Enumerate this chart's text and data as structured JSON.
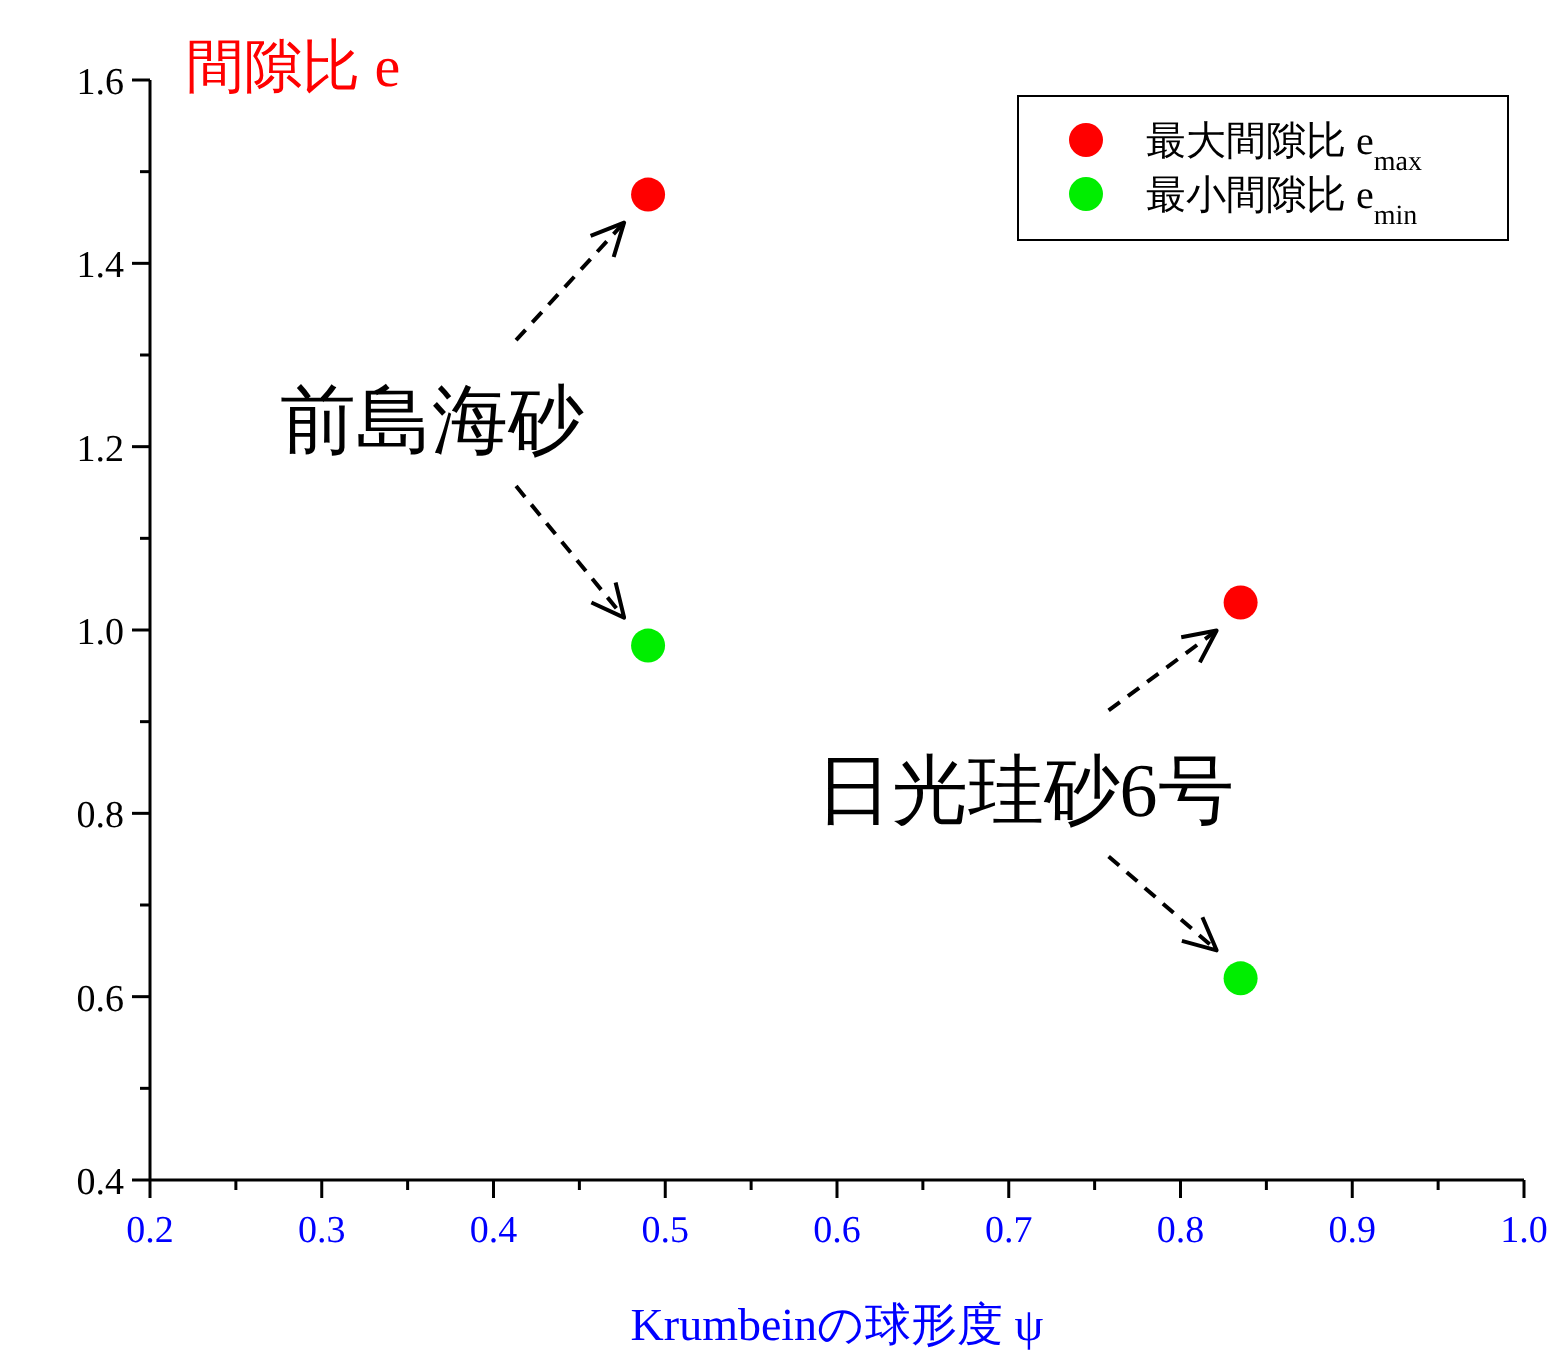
{
  "chart_data": {
    "type": "scatter",
    "ylabel": "間隙比 e",
    "xlabel": "Krumbeinの球形度 ψ",
    "x": [
      0.49,
      0.835
    ],
    "series": [
      {
        "name": "最大間隙比 e$_{max}$",
        "color": "#ff0000",
        "values": [
          1.475,
          1.03
        ]
      },
      {
        "name": "最小間隙比 e$_{min}$",
        "color": "#00ee00",
        "values": [
          0.983,
          0.62
        ]
      }
    ],
    "annotations": [
      "前島海砂",
      "日光珪砂6号"
    ],
    "xlim": [
      0.2,
      1.0
    ],
    "ylim": [
      0.4,
      1.6
    ],
    "xticks": [
      0.2,
      {
        "value": 0.25,
        "label": null
      },
      0.3,
      {
        "value": 0.35,
        "label": null
      },
      0.4,
      {
        "value": 0.45,
        "label": null
      },
      0.5,
      {
        "value": 0.55,
        "label": null
      },
      0.6,
      {
        "value": 0.65,
        "label": null
      },
      0.7,
      {
        "value": 0.75,
        "label": null
      },
      0.8,
      {
        "value": 0.85,
        "label": null
      },
      0.9,
      {
        "value": 0.95,
        "label": null
      },
      {
        "value": 1,
        "label": "1.0"
      }
    ],
    "yticks": [
      0.4,
      {
        "value": 0.5,
        "label": null
      },
      0.6,
      {
        "value": 0.7,
        "label": null
      },
      0.8,
      {
        "value": 0.9,
        "label": null
      },
      {
        "value": 1,
        "label": "1.0"
      },
      {
        "value": 1.1,
        "label": null
      },
      1.2,
      {
        "value": 1.3,
        "label": null
      },
      1.4,
      {
        "value": 1.5,
        "label": null
      },
      1.6
    ],
    "marker": "circle",
    "grid": false,
    "legend": "top right"
  }
}
